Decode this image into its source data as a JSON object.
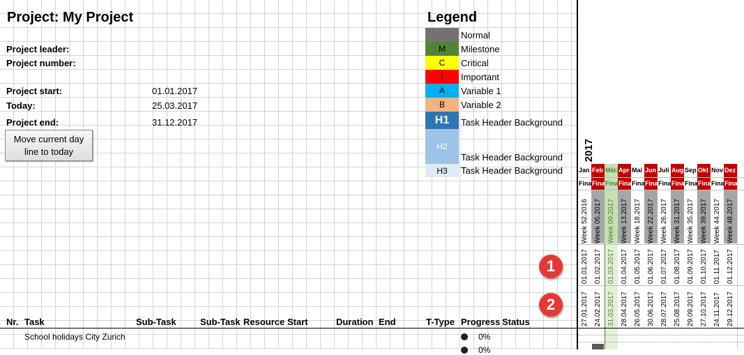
{
  "project": {
    "title": "Project: My Project",
    "leader_label": "Project leader:",
    "number_label": "Project number:",
    "start_label": "Project start:",
    "start_value": "01.01.2017",
    "today_label": "Today:",
    "today_value": "25.03.2017",
    "end_label": "Project end:",
    "end_value": "31.12.2017"
  },
  "button": {
    "label": "Move current day line to today"
  },
  "legend": {
    "title": "Legend",
    "items": [
      {
        "code": "",
        "label": "Normal",
        "color": "#767171"
      },
      {
        "code": "M",
        "label": "Milestone",
        "color": "#548235"
      },
      {
        "code": "C",
        "label": "Critical",
        "color": "#ffff00"
      },
      {
        "code": "I",
        "label": "Important",
        "color": "#ff0000"
      },
      {
        "code": "A",
        "label": "Variable 1",
        "color": "#00b0f0"
      },
      {
        "code": "B",
        "label": "Variable 2",
        "color": "#f4b183"
      },
      {
        "code": "H1",
        "label": "Task Header Background",
        "color": "#2e75b6"
      },
      {
        "code": "H2",
        "label": "Task Header Background",
        "color": "#9dc3e6"
      },
      {
        "code": "H3",
        "label": "Task Header Background",
        "color": "#ddebf7"
      }
    ]
  },
  "columns": {
    "nr": "Nr.",
    "task": "Task",
    "subtask1": "Sub-Task",
    "subtask2": "Sub-Task",
    "resource": "Resource",
    "start": "Start",
    "duration": "Duration",
    "end": "End",
    "ttype": "T-Type",
    "progress": "Progress",
    "status": "Status"
  },
  "rows": [
    {
      "task": "School holidays City Zurich",
      "progress": "0%"
    },
    {
      "task": "",
      "progress": "0%"
    }
  ],
  "badges": [
    "1",
    "2"
  ],
  "gantt": {
    "year": "2017",
    "months": [
      {
        "name": "Jan",
        "fin": "Fina",
        "header_color": "#ffffff",
        "text_color": "#000000"
      },
      {
        "name": "Feb",
        "fin": "Fina",
        "header_color": "#c00000",
        "text_color": "#ffffff"
      },
      {
        "name": "März",
        "fin": "Fina",
        "header_color": "#c6e0b4",
        "text_color": "#548235"
      },
      {
        "name": "Apr",
        "fin": "Fina",
        "header_color": "#c00000",
        "text_color": "#ffffff"
      },
      {
        "name": "Mai",
        "fin": "Fina",
        "header_color": "#ffffff",
        "text_color": "#000000"
      },
      {
        "name": "Jun",
        "fin": "Fina",
        "header_color": "#c00000",
        "text_color": "#ffffff"
      },
      {
        "name": "Juli",
        "fin": "Fina",
        "header_color": "#ffffff",
        "text_color": "#000000"
      },
      {
        "name": "Aug",
        "fin": "Fina",
        "header_color": "#c00000",
        "text_color": "#ffffff"
      },
      {
        "name": "Sep",
        "fin": "Fina",
        "header_color": "#ffffff",
        "text_color": "#000000"
      },
      {
        "name": "Okt",
        "fin": "Fina",
        "header_color": "#c00000",
        "text_color": "#ffffff"
      },
      {
        "name": "Nov",
        "fin": "Fina",
        "header_color": "#ffffff",
        "text_color": "#000000"
      },
      {
        "name": "Dez",
        "fin": "Fina",
        "header_color": "#c00000",
        "text_color": "#ffffff"
      }
    ],
    "weeks": [
      "Week 52.2016",
      "Week 05.2017",
      "Week 09.2017",
      "Week 13.2017",
      "Week 18.2017",
      "Week 22.2017",
      "Week 26.2017",
      "Week 31.2017",
      "Week 35.2017",
      "Week 39.2017",
      "Week 44.2017",
      "Week 48.2017"
    ],
    "month_starts": [
      "01.01.2017",
      "01.02.2017",
      "01.03.2017",
      "01.04.2017",
      "01.05.2017",
      "01.06.2017",
      "01.07.2017",
      "01.08.2017",
      "01.09.2017",
      "01.10.2017",
      "01.11.2017",
      "01.12.2017"
    ],
    "dates": [
      "27.01.2017",
      "24.02.2017",
      "31.03.2017",
      "28.04.2017",
      "26.05.2017",
      "30.06.2017",
      "28.07.2017",
      "25.08.2017",
      "29.09.2017",
      "27.10.2017",
      "24.11.2017",
      "29.12.2017"
    ]
  }
}
